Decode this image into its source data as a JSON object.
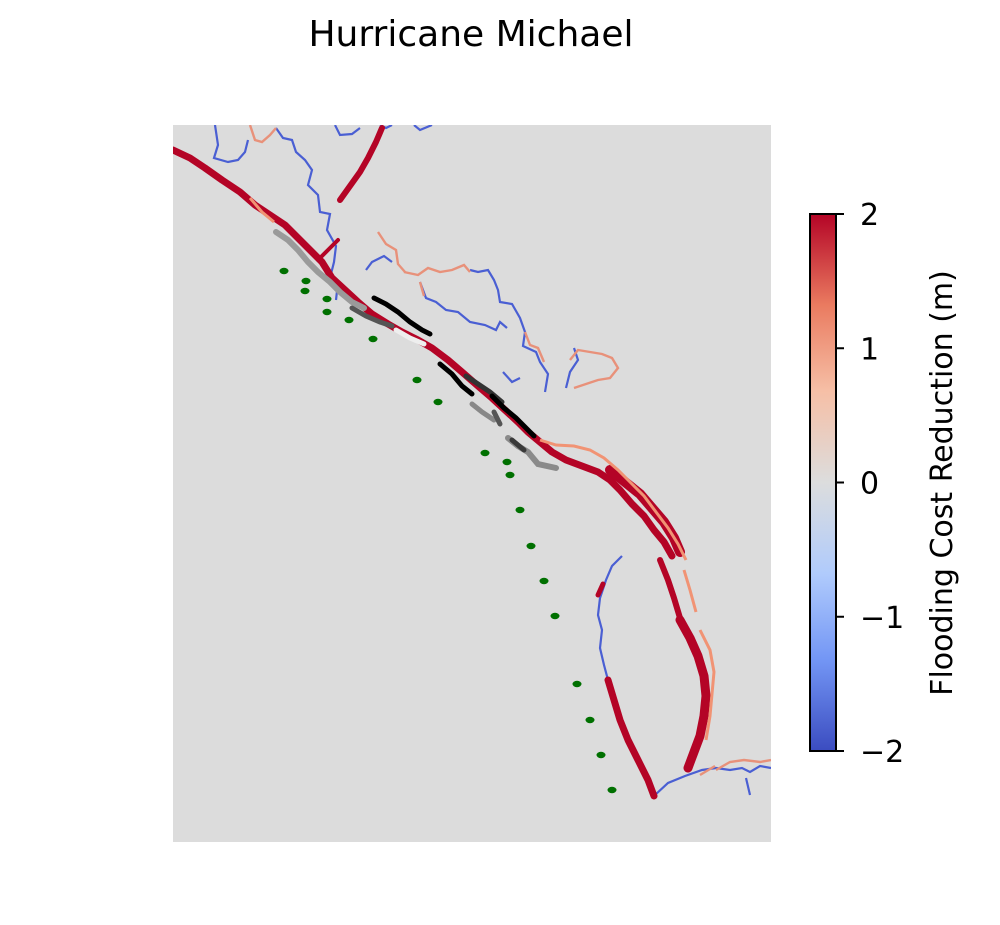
{
  "chart_data": {
    "type": "heatmap",
    "title": "Hurricane Michael",
    "colorbar": {
      "label": "Flooding Cost Reduction (m)",
      "range": [
        -2,
        2
      ],
      "ticks": [
        {
          "value": 2,
          "label": "2"
        },
        {
          "value": 1,
          "label": "1"
        },
        {
          "value": 0,
          "label": "0"
        },
        {
          "value": -1,
          "label": "−1"
        },
        {
          "value": -2,
          "label": "−2"
        }
      ],
      "colormap": "coolwarm",
      "colors": [
        "#3b4cc0",
        "#7396f5",
        "#b0cbfc",
        "#dcdddd",
        "#f6bfa6",
        "#ea7b60",
        "#b40426"
      ]
    },
    "background_color": "#dcdcdc",
    "track_color": "#007000",
    "axes_visible": false
  }
}
